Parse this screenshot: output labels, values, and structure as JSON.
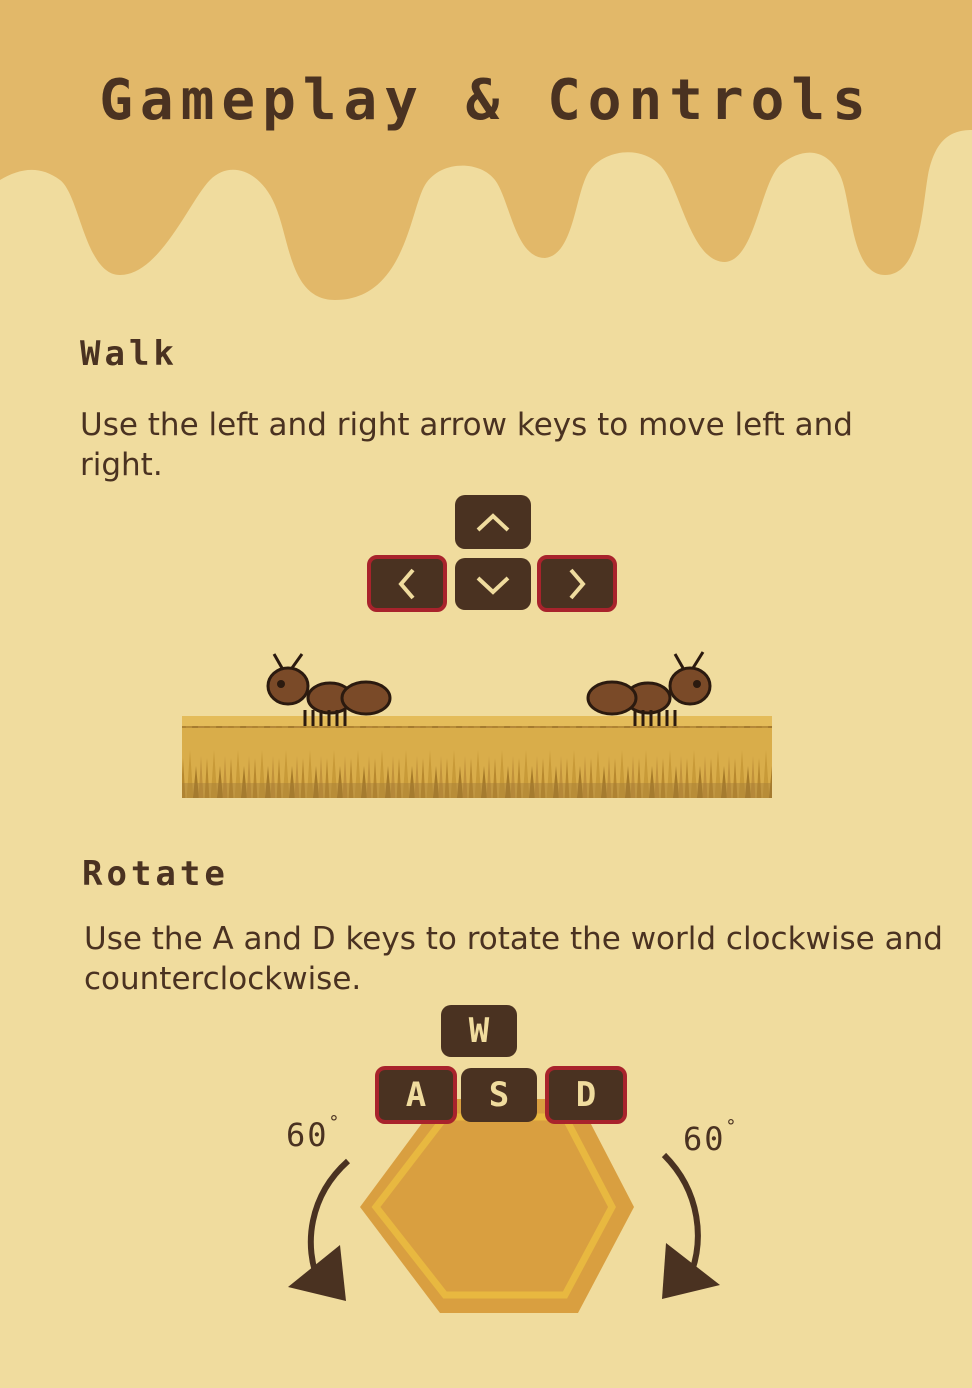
{
  "page": {
    "title": "Gameplay & Controls"
  },
  "colors": {
    "background": "#f0dc9e",
    "honey": "#e2b869",
    "key": "#4a3221",
    "key_active_border": "#a8232c",
    "hex": "#d99f40",
    "hex_rim": "#e8b840"
  },
  "walk": {
    "heading": "Walk",
    "description": "Use the left and right arrow keys to move left and right.",
    "keys": [
      {
        "icon": "chevron-up-icon",
        "active": false
      },
      {
        "icon": "chevron-left-icon",
        "active": true
      },
      {
        "icon": "chevron-down-icon",
        "active": false
      },
      {
        "icon": "chevron-right-icon",
        "active": true
      }
    ]
  },
  "rotate": {
    "heading": "Rotate",
    "description": "Use the A and D keys to rotate the world clockwise and counterclockwise.",
    "keys": {
      "w": "W",
      "a": "A",
      "s": "S",
      "d": "D"
    },
    "angle_left": "60",
    "angle_right": "60",
    "degree_symbol": "°"
  }
}
